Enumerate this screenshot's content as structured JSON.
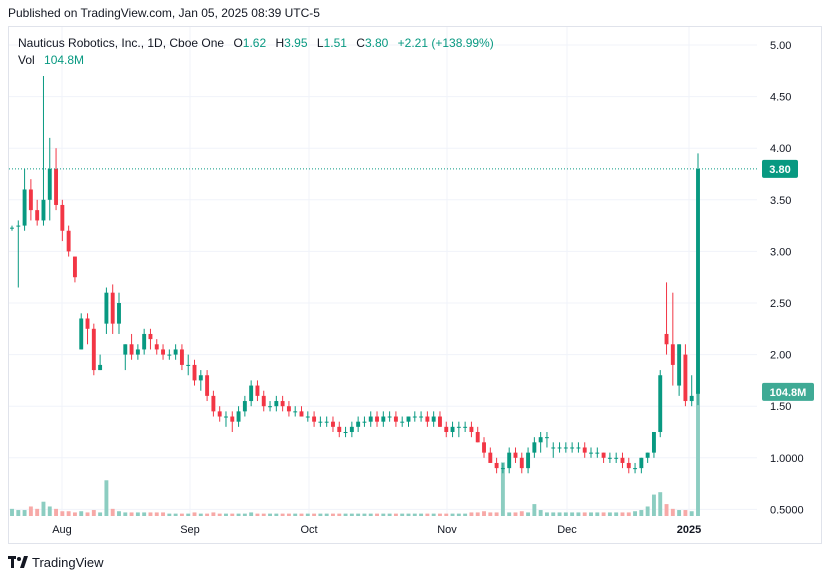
{
  "published": "Published on TradingView.com, Jan 05, 2025 08:39 UTC-5",
  "legend": {
    "symbol": "Nauticus Robotics, Inc., 1D, Cboe One",
    "o_label": "O",
    "o_value": "1.62",
    "h_label": "H",
    "h_value": "3.95",
    "l_label": "L",
    "l_value": "1.51",
    "c_label": "C",
    "c_value": "3.80",
    "change": "+2.21 (+138.99%)",
    "vol_label": "Vol",
    "vol_value": "104.8M"
  },
  "footer": {
    "brand": "TradingView"
  },
  "colors": {
    "up": "#089981",
    "down": "#f23645",
    "up_vol": "#8ccdc1",
    "down_vol": "#f7a9a7",
    "grid": "#f0f3fa"
  },
  "chart_data": {
    "type": "candlestick",
    "y_ticks": [
      "5.00",
      "4.50",
      "4.00",
      "3.50",
      "3.00",
      "2.50",
      "2.00",
      "1.50",
      "1.0000",
      "0.5000"
    ],
    "y_tick_values": [
      5.0,
      4.5,
      4.0,
      3.5,
      3.0,
      2.5,
      2.0,
      1.5,
      1.0,
      0.5
    ],
    "ylim": [
      0.45,
      5.2
    ],
    "x_ticks": [
      "Aug",
      "Sep",
      "Oct",
      "Nov",
      "Dec",
      "2025"
    ],
    "last_price_label": "3.80",
    "last_price": 3.8,
    "volume_label": "104.8M",
    "volume_label_price": 1.62,
    "candles": [
      [
        3.22,
        3.25,
        3.2,
        3.23
      ],
      [
        3.25,
        3.3,
        2.65,
        3.25
      ],
      [
        3.25,
        3.8,
        3.2,
        3.6
      ],
      [
        3.6,
        3.7,
        3.3,
        3.4
      ],
      [
        3.4,
        3.5,
        3.25,
        3.3
      ],
      [
        3.3,
        4.7,
        3.25,
        3.5
      ],
      [
        3.5,
        4.1,
        3.3,
        3.8
      ],
      [
        3.8,
        4.0,
        3.4,
        3.45
      ],
      [
        3.45,
        3.5,
        3.1,
        3.2
      ],
      [
        3.2,
        3.25,
        2.95,
        3.0
      ],
      [
        2.95,
        2.95,
        2.7,
        2.75
      ],
      [
        2.05,
        2.4,
        2.05,
        2.35
      ],
      [
        2.35,
        2.4,
        2.1,
        2.25
      ],
      [
        2.25,
        2.3,
        1.8,
        1.85
      ],
      [
        1.85,
        2.0,
        1.85,
        1.9
      ],
      [
        2.3,
        2.65,
        2.2,
        2.6
      ],
      [
        2.6,
        2.68,
        2.2,
        2.3
      ],
      [
        2.3,
        2.6,
        2.2,
        2.5
      ],
      [
        2.0,
        2.1,
        1.85,
        2.1
      ],
      [
        2.1,
        2.2,
        1.95,
        2.0
      ],
      [
        2.0,
        2.1,
        1.95,
        2.05
      ],
      [
        2.05,
        2.25,
        2.0,
        2.2
      ],
      [
        2.2,
        2.25,
        2.05,
        2.15
      ],
      [
        2.1,
        2.15,
        2.0,
        2.05
      ],
      [
        2.05,
        2.1,
        1.95,
        2.0
      ],
      [
        2.0,
        2.05,
        1.95,
        2.0
      ],
      [
        2.0,
        2.1,
        1.95,
        2.05
      ],
      [
        2.05,
        2.1,
        1.85,
        1.9
      ],
      [
        1.9,
        2.0,
        1.8,
        1.9
      ],
      [
        1.9,
        1.95,
        1.7,
        1.75
      ],
      [
        1.75,
        1.85,
        1.65,
        1.8
      ],
      [
        1.8,
        1.85,
        1.55,
        1.6
      ],
      [
        1.6,
        1.65,
        1.4,
        1.45
      ],
      [
        1.45,
        1.5,
        1.35,
        1.4
      ],
      [
        1.4,
        1.45,
        1.3,
        1.4
      ],
      [
        1.4,
        1.45,
        1.25,
        1.35
      ],
      [
        1.35,
        1.5,
        1.3,
        1.45
      ],
      [
        1.45,
        1.6,
        1.4,
        1.55
      ],
      [
        1.55,
        1.75,
        1.5,
        1.7
      ],
      [
        1.7,
        1.75,
        1.55,
        1.6
      ],
      [
        1.6,
        1.65,
        1.45,
        1.5
      ],
      [
        1.5,
        1.55,
        1.45,
        1.5
      ],
      [
        1.5,
        1.6,
        1.45,
        1.55
      ],
      [
        1.55,
        1.6,
        1.45,
        1.5
      ],
      [
        1.5,
        1.55,
        1.4,
        1.45
      ],
      [
        1.45,
        1.5,
        1.4,
        1.45
      ],
      [
        1.45,
        1.5,
        1.4,
        1.4
      ],
      [
        1.4,
        1.45,
        1.35,
        1.4
      ],
      [
        1.4,
        1.45,
        1.3,
        1.35
      ],
      [
        1.35,
        1.4,
        1.3,
        1.35
      ],
      [
        1.35,
        1.4,
        1.3,
        1.35
      ],
      [
        1.35,
        1.4,
        1.25,
        1.3
      ],
      [
        1.3,
        1.35,
        1.2,
        1.25
      ],
      [
        1.25,
        1.3,
        1.2,
        1.25
      ],
      [
        1.25,
        1.35,
        1.2,
        1.3
      ],
      [
        1.3,
        1.4,
        1.25,
        1.35
      ],
      [
        1.35,
        1.4,
        1.3,
        1.35
      ],
      [
        1.35,
        1.45,
        1.3,
        1.4
      ],
      [
        1.4,
        1.45,
        1.3,
        1.35
      ],
      [
        1.35,
        1.45,
        1.3,
        1.4
      ],
      [
        1.4,
        1.45,
        1.35,
        1.4
      ],
      [
        1.4,
        1.45,
        1.3,
        1.35
      ],
      [
        1.35,
        1.4,
        1.3,
        1.35
      ],
      [
        1.35,
        1.4,
        1.3,
        1.4
      ],
      [
        1.4,
        1.45,
        1.35,
        1.4
      ],
      [
        1.4,
        1.45,
        1.35,
        1.4
      ],
      [
        1.4,
        1.45,
        1.3,
        1.35
      ],
      [
        1.35,
        1.45,
        1.3,
        1.4
      ],
      [
        1.4,
        1.45,
        1.3,
        1.3
      ],
      [
        1.3,
        1.35,
        1.2,
        1.25
      ],
      [
        1.25,
        1.35,
        1.2,
        1.3
      ],
      [
        1.3,
        1.35,
        1.2,
        1.3
      ],
      [
        1.3,
        1.35,
        1.25,
        1.3
      ],
      [
        1.3,
        1.35,
        1.2,
        1.25
      ],
      [
        1.25,
        1.3,
        1.15,
        1.15
      ],
      [
        1.15,
        1.2,
        1.0,
        1.05
      ],
      [
        1.05,
        1.1,
        0.95,
        0.95
      ],
      [
        0.95,
        1.0,
        0.85,
        0.9
      ],
      [
        0.9,
        0.95,
        0.85,
        0.9
      ],
      [
        0.9,
        1.1,
        0.85,
        1.05
      ],
      [
        1.05,
        1.1,
        0.95,
        1.0
      ],
      [
        1.0,
        1.05,
        0.85,
        0.9
      ],
      [
        0.9,
        1.1,
        0.85,
        1.05
      ],
      [
        1.05,
        1.2,
        1.0,
        1.15
      ],
      [
        1.15,
        1.25,
        1.05,
        1.2
      ],
      [
        1.2,
        1.25,
        1.1,
        1.2
      ],
      [
        1.1,
        1.15,
        1.0,
        1.1
      ],
      [
        1.1,
        1.15,
        1.05,
        1.1
      ],
      [
        1.1,
        1.15,
        1.05,
        1.1
      ],
      [
        1.1,
        1.15,
        1.05,
        1.1
      ],
      [
        1.1,
        1.15,
        1.05,
        1.1
      ],
      [
        1.1,
        1.15,
        1.0,
        1.05
      ],
      [
        1.05,
        1.1,
        1.0,
        1.05
      ],
      [
        1.05,
        1.1,
        1.0,
        1.05
      ],
      [
        1.05,
        1.05,
        0.95,
        1.0
      ],
      [
        1.0,
        1.05,
        0.95,
        1.0
      ],
      [
        1.0,
        1.05,
        0.95,
        1.0
      ],
      [
        1.0,
        1.05,
        0.9,
        0.95
      ],
      [
        0.95,
        1.0,
        0.85,
        0.9
      ],
      [
        0.9,
        0.95,
        0.85,
        0.9
      ],
      [
        0.9,
        1.0,
        0.85,
        1.0
      ],
      [
        1.0,
        1.05,
        0.95,
        1.05
      ],
      [
        1.05,
        1.25,
        1.0,
        1.25
      ],
      [
        1.25,
        1.85,
        1.2,
        1.8
      ],
      [
        2.2,
        2.7,
        2.0,
        2.1
      ],
      [
        2.1,
        2.6,
        1.7,
        1.9
      ],
      [
        1.7,
        2.1,
        1.6,
        2.1
      ],
      [
        2.0,
        2.1,
        1.5,
        1.55
      ],
      [
        1.55,
        1.8,
        1.5,
        1.6
      ],
      [
        1.62,
        3.95,
        1.51,
        3.8
      ]
    ],
    "volumes": [
      6,
      5,
      5,
      8,
      6,
      12,
      8,
      6,
      4,
      4,
      3,
      4,
      3,
      5,
      3,
      30,
      6,
      4,
      3,
      3,
      3,
      3,
      3,
      3,
      3,
      2,
      2,
      2,
      2,
      3,
      2,
      2,
      3,
      2,
      2,
      2,
      2,
      2,
      3,
      2,
      2,
      2,
      2,
      2,
      2,
      2,
      2,
      2,
      2,
      2,
      2,
      2,
      2,
      2,
      2,
      2,
      2,
      2,
      2,
      2,
      2,
      2,
      2,
      2,
      2,
      2,
      2,
      2,
      2,
      2,
      2,
      2,
      2,
      3,
      3,
      4,
      3,
      3,
      45,
      3,
      3,
      4,
      3,
      10,
      5,
      3,
      3,
      3,
      3,
      3,
      3,
      3,
      3,
      3,
      3,
      3,
      3,
      3,
      3,
      4,
      5,
      8,
      18,
      20,
      10,
      6,
      5,
      5,
      4,
      105
    ]
  }
}
